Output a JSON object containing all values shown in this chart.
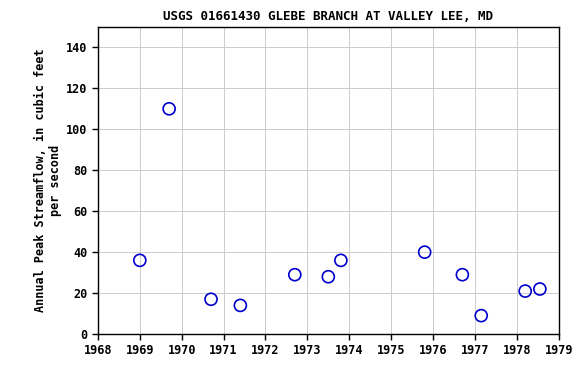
{
  "title": "USGS 01661430 GLEBE BRANCH AT VALLEY LEE, MD",
  "ylabel_line1": "Annual Peak Streamflow, in cubic feet",
  "ylabel_line2": "per second",
  "x_data": [
    1969.0,
    1969.7,
    1970.7,
    1971.4,
    1972.7,
    1973.5,
    1973.8,
    1975.8,
    1976.7,
    1977.15,
    1978.2,
    1978.55
  ],
  "y_data": [
    36,
    110,
    17,
    14,
    29,
    28,
    36,
    40,
    29,
    9,
    21,
    22
  ],
  "xlim": [
    1968,
    1979
  ],
  "ylim": [
    0,
    150
  ],
  "xticks": [
    1968,
    1969,
    1970,
    1971,
    1972,
    1973,
    1974,
    1975,
    1976,
    1977,
    1978,
    1979
  ],
  "yticks": [
    0,
    20,
    40,
    60,
    80,
    100,
    120,
    140
  ],
  "marker_color": "#0000CC",
  "marker_facecolor": "none",
  "marker_size": 5,
  "marker_linewidth": 1.2,
  "grid_color": "#cccccc",
  "background_color": "#ffffff",
  "title_fontsize": 9,
  "label_fontsize": 8.5,
  "tick_fontsize": 8.5
}
